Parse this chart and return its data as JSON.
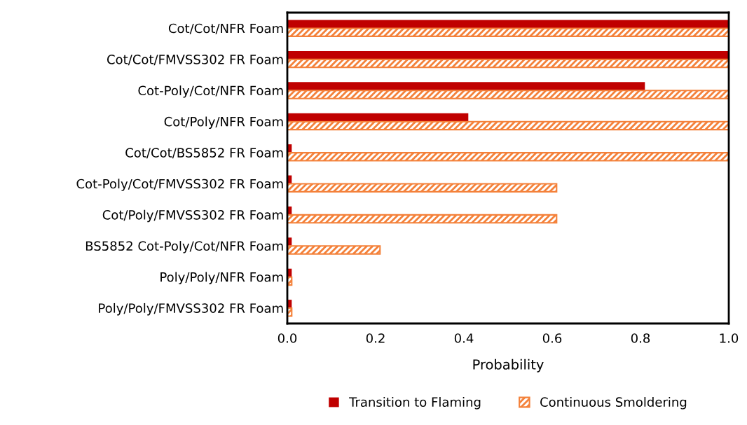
{
  "chart_data": {
    "type": "bar",
    "orientation": "horizontal",
    "xlabel": "Probability",
    "categories": [
      "Cot/Cot/NFR Foam",
      "Cot/Cot/FMVSS302 FR Foam",
      "Cot-Poly/Cot/NFR Foam",
      "Cot/Poly/NFR Foam",
      "Cot/Cot/BS5852 FR Foam",
      "Cot-Poly/Cot/FMVSS302 FR Foam",
      "Cot/Poly/FMVSS302 FR Foam",
      "BS5852 Cot-Poly/Cot/NFR Foam",
      "Poly/Poly/NFR Foam",
      "Poly/Poly/FMVSS302 FR Foam"
    ],
    "series": [
      {
        "name": "Transition to Flaming",
        "color": "#c00000",
        "values": [
          1.0,
          1.0,
          0.81,
          0.41,
          0.01,
          0.01,
          0.01,
          0.01,
          0.01,
          0.01
        ]
      },
      {
        "name": "Continuous Smoldering",
        "color": "#f4813a",
        "values": [
          1.0,
          1.0,
          1.0,
          1.0,
          1.0,
          0.61,
          0.61,
          0.21,
          0.01,
          0.01
        ]
      }
    ],
    "xlim": [
      0,
      1
    ],
    "xticks": [
      {
        "value": 0,
        "label": "0.0"
      },
      {
        "value": 0.2,
        "label": "0.2"
      },
      {
        "value": 0.4,
        "label": "0.4"
      },
      {
        "value": 0.6,
        "label": "0.6"
      },
      {
        "value": 0.8,
        "label": "0.8"
      },
      {
        "value": 1,
        "label": "1.0"
      }
    ],
    "grid": false,
    "legend": "bottom"
  }
}
